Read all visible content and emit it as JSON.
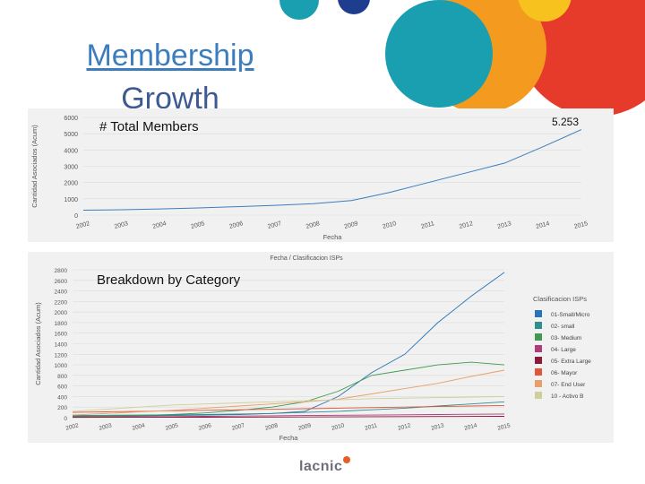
{
  "slide": {
    "title_line1": "Membership",
    "title_line2": "Growth",
    "logo_text": "lacnic",
    "colors": {
      "title": "#3c7dbd",
      "deco_red": "#e63a2b",
      "deco_orange": "#f39a1f",
      "deco_teal": "#1a9fb0",
      "deco_yellow": "#f7c21d",
      "deco_blue": "#1e3d8f"
    }
  },
  "chart_data": [
    {
      "type": "line",
      "caption": "# Total Members",
      "annotation": "5.253",
      "ylabel": "Cantidad Asociados (Acum)",
      "xlabel": "Fecha",
      "ylim": [
        0,
        6000
      ],
      "yticks": [
        "0",
        "1000",
        "2000",
        "3000",
        "4000",
        "5000",
        "6000"
      ],
      "categories": [
        "2002",
        "2003",
        "2004",
        "2005",
        "2006",
        "2007",
        "2008",
        "2009",
        "2010",
        "2011",
        "2012",
        "2013",
        "2014",
        "2015"
      ],
      "series": [
        {
          "name": "Total",
          "color": "#3c7dbd",
          "values": [
            300,
            330,
            380,
            440,
            520,
            600,
            700,
            900,
            1400,
            2000,
            2600,
            3200,
            4200,
            5253
          ]
        }
      ]
    },
    {
      "type": "line",
      "caption": "Breakdown by Category",
      "title": "Fecha / Clasificacion ISPs",
      "ylabel": "Cantidad Asociados (Acum)",
      "xlabel": "Fecha",
      "legend_title": "Clasificacion ISPs",
      "ylim": [
        0,
        2800
      ],
      "yticks": [
        "0",
        "200",
        "400",
        "600",
        "800",
        "1000",
        "1200",
        "1400",
        "1600",
        "1800",
        "2000",
        "2200",
        "2400",
        "2600",
        "2800"
      ],
      "categories": [
        "2002",
        "2003",
        "2004",
        "2005",
        "2006",
        "2007",
        "2008",
        "2009",
        "2010",
        "2011",
        "2012",
        "2013",
        "2014",
        "2015"
      ],
      "series": [
        {
          "name": "01-Small/Micro",
          "color": "#2a73b6",
          "values": [
            30,
            30,
            35,
            40,
            50,
            60,
            80,
            120,
            400,
            850,
            1200,
            1800,
            2300,
            2750
          ]
        },
        {
          "name": "02- small",
          "color": "#2e8f8f",
          "values": [
            40,
            45,
            50,
            55,
            60,
            70,
            80,
            100,
            120,
            150,
            180,
            220,
            260,
            300
          ]
        },
        {
          "name": "03- Medium",
          "color": "#3e9a4e",
          "values": [
            20,
            30,
            40,
            60,
            90,
            140,
            200,
            300,
            500,
            800,
            900,
            1000,
            1050,
            1000
          ]
        },
        {
          "name": "04- Large",
          "color": "#b03a7a",
          "values": [
            10,
            15,
            18,
            20,
            25,
            30,
            35,
            40,
            45,
            50,
            55,
            60,
            65,
            70
          ]
        },
        {
          "name": "05- Extra Large",
          "color": "#8e1a3a",
          "values": [
            5,
            6,
            7,
            8,
            9,
            10,
            12,
            14,
            16,
            18,
            20,
            22,
            24,
            26
          ]
        },
        {
          "name": "06- Mayor",
          "color": "#e0573a",
          "values": [
            100,
            110,
            120,
            130,
            140,
            150,
            160,
            170,
            180,
            190,
            200,
            210,
            220,
            230
          ]
        },
        {
          "name": "07- End User",
          "color": "#e7a06a",
          "values": [
            50,
            80,
            110,
            140,
            180,
            220,
            260,
            300,
            350,
            450,
            550,
            650,
            780,
            900
          ]
        },
        {
          "name": "10 - Activo B",
          "color": "#cfcf9a",
          "values": [
            120,
            160,
            200,
            240,
            260,
            280,
            300,
            320,
            340,
            360,
            370,
            380,
            390,
            400
          ]
        }
      ]
    }
  ]
}
